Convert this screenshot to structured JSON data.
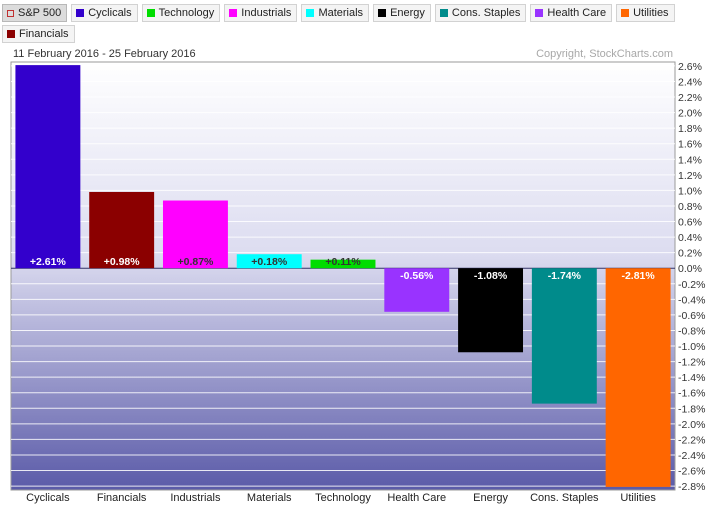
{
  "legend": [
    {
      "label": "S&P 500",
      "color": "#c03030",
      "hollow": true,
      "active": true
    },
    {
      "label": "Cyclicals",
      "color": "#3300cc"
    },
    {
      "label": "Technology",
      "color": "#00dd00"
    },
    {
      "label": "Industrials",
      "color": "#ff00ff"
    },
    {
      "label": "Materials",
      "color": "#00ffff"
    },
    {
      "label": "Energy",
      "color": "#000000"
    },
    {
      "label": "Cons. Staples",
      "color": "#008b8b"
    },
    {
      "label": "Health Care",
      "color": "#9933ff"
    },
    {
      "label": "Utilities",
      "color": "#ff6600"
    },
    {
      "label": "Financials",
      "color": "#8b0000"
    }
  ],
  "date_range": "11 February 2016 - 25 February 2016",
  "copyright": "Copyright, StockCharts.com",
  "chart_data": {
    "type": "bar",
    "categories": [
      "Cyclicals",
      "Financials",
      "Industrials",
      "Materials",
      "Technology",
      "Health Care",
      "Energy",
      "Cons. Staples",
      "Utilities"
    ],
    "values": [
      2.61,
      0.98,
      0.87,
      0.18,
      0.11,
      -0.56,
      -1.08,
      -1.74,
      -2.81
    ],
    "data_labels": [
      "+2.61%",
      "+0.98%",
      "+0.87%",
      "+0.18%",
      "+0.11%",
      "-0.56%",
      "-1.08%",
      "-1.74%",
      "-2.81%"
    ],
    "colors": [
      "#3300cc",
      "#8b0000",
      "#ff00ff",
      "#00ffff",
      "#00dd00",
      "#9933ff",
      "#000000",
      "#008b8b",
      "#ff6600"
    ],
    "label_colors": [
      "#ffffff",
      "#ffffff",
      "#333333",
      "#333333",
      "#333333",
      "#ffffff",
      "#ffffff",
      "#ffffff",
      "#ffffff"
    ],
    "ylim": [
      -2.85,
      2.65
    ],
    "yticks": [
      2.6,
      2.4,
      2.2,
      2.0,
      1.8,
      1.6,
      1.4,
      1.2,
      1.0,
      0.8,
      0.6,
      0.4,
      0.2,
      0.0,
      -0.2,
      -0.4,
      -0.6,
      -0.8,
      -1.0,
      -1.2,
      -1.4,
      -1.6,
      -1.8,
      -2.0,
      -2.2,
      -2.4,
      -2.6,
      -2.8
    ],
    "ytick_labels": [
      "2.6%",
      "2.4%",
      "2.2%",
      "2.0%",
      "1.8%",
      "1.6%",
      "1.4%",
      "1.2%",
      "1.0%",
      "0.8%",
      "0.6%",
      "0.4%",
      "0.2%",
      "0.0%",
      "-0.2%",
      "-0.4%",
      "-0.6%",
      "-0.8%",
      "-1.0%",
      "-1.2%",
      "-1.4%",
      "-1.6%",
      "-1.8%",
      "-2.0%",
      "-2.2%",
      "-2.4%",
      "-2.6%",
      "-2.8%"
    ],
    "grid": true,
    "axis_position": "right"
  }
}
